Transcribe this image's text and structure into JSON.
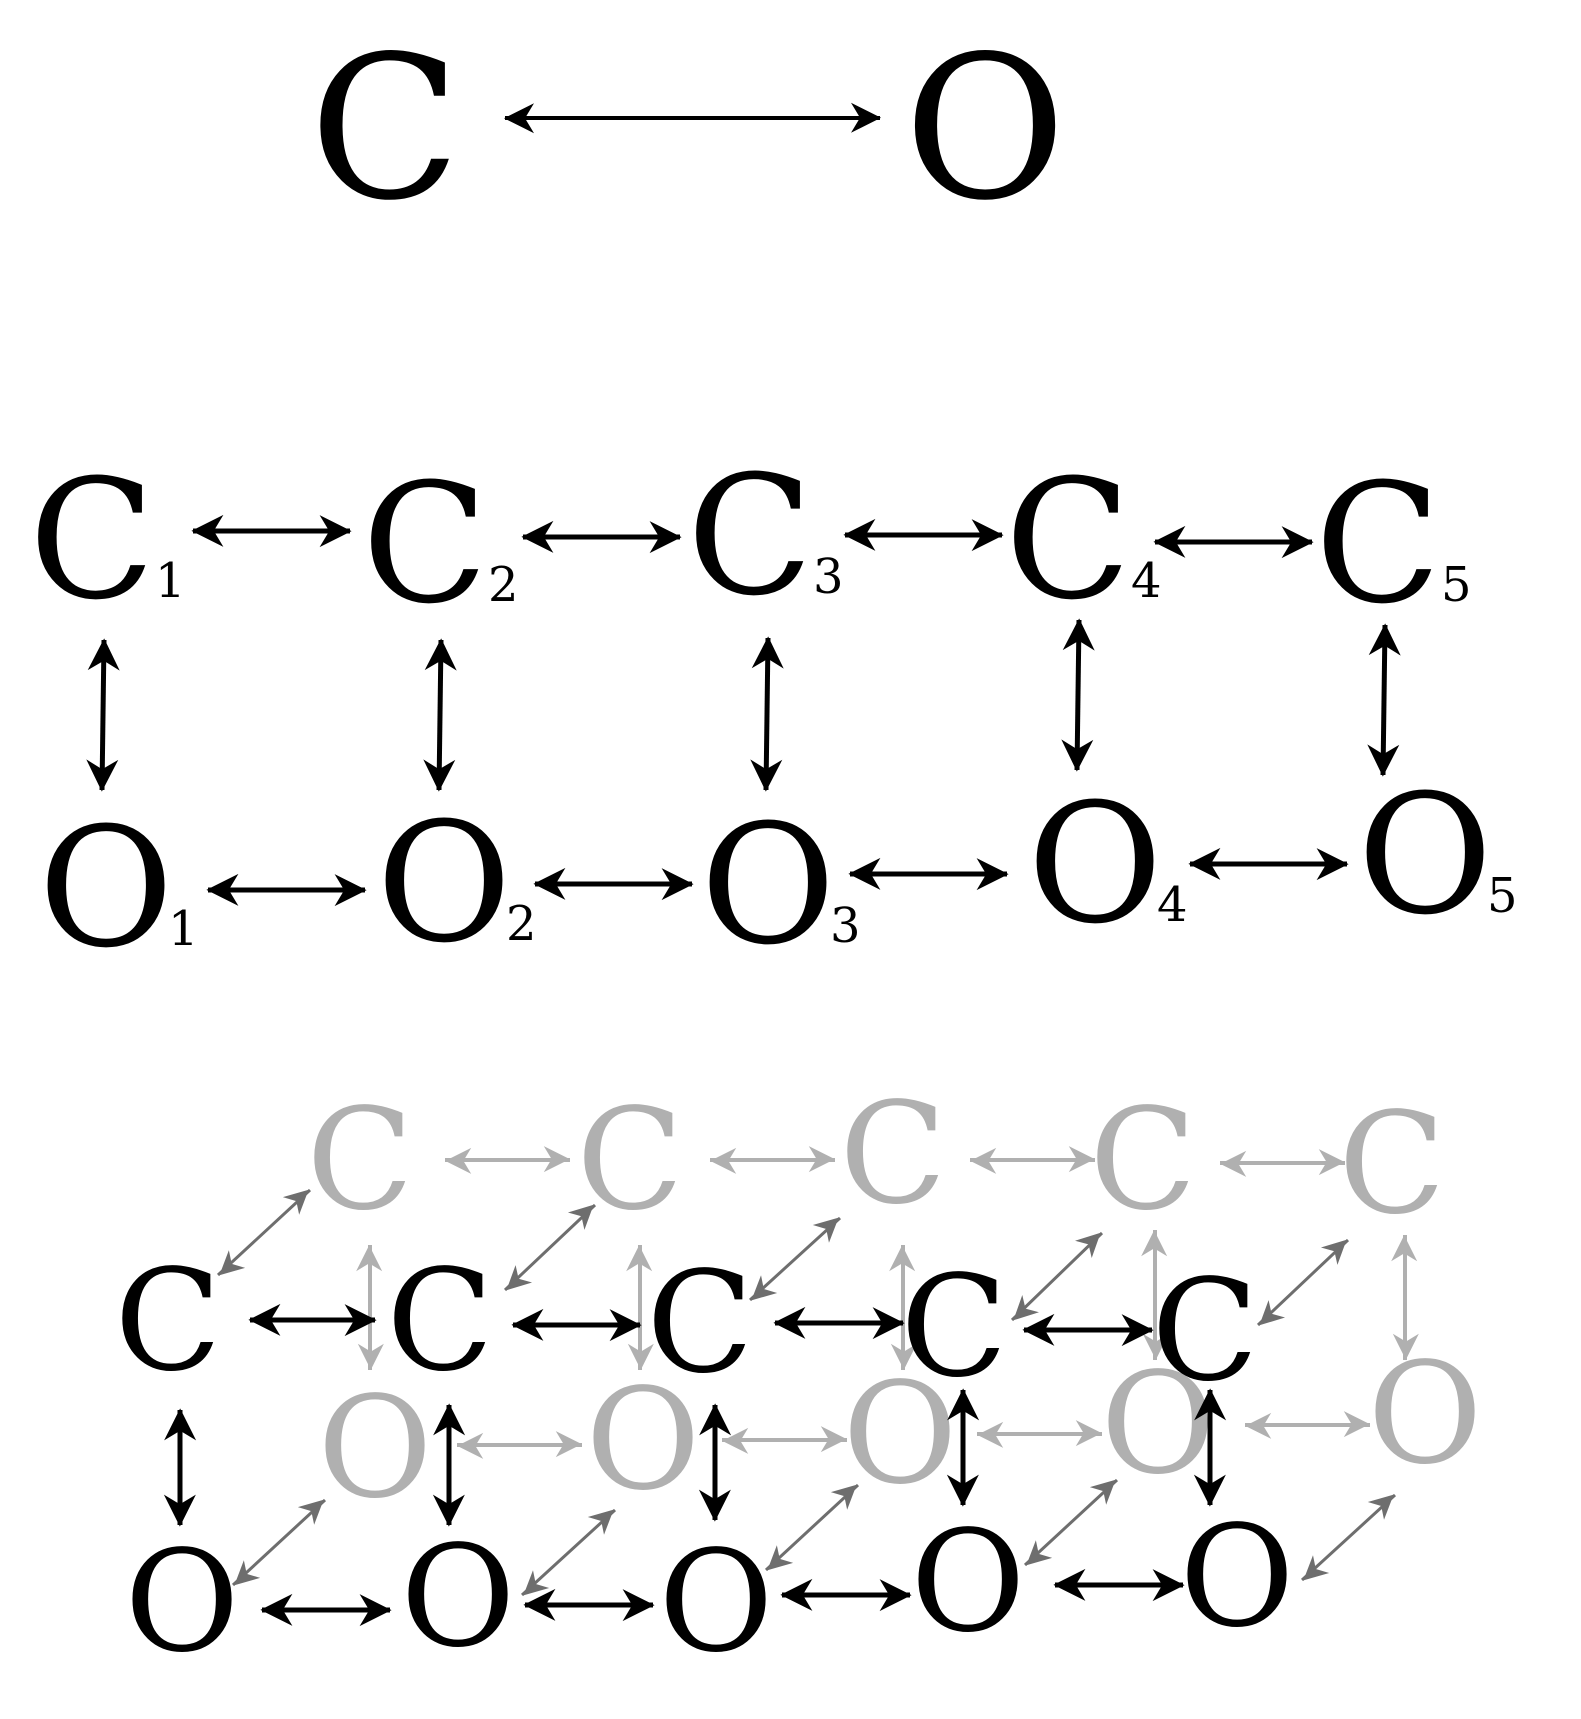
{
  "colors": {
    "front": "#000000",
    "back": "#b0b0b0",
    "depth_link": "#6e6e6e"
  },
  "top": {
    "left_label": "C",
    "right_label": "O"
  },
  "grid": {
    "top_row": [
      {
        "label": "C",
        "sub": "1"
      },
      {
        "label": "C",
        "sub": "2"
      },
      {
        "label": "C",
        "sub": "3"
      },
      {
        "label": "C",
        "sub": "4"
      },
      {
        "label": "C",
        "sub": "5"
      }
    ],
    "bottom_row": [
      {
        "label": "O",
        "sub": "1"
      },
      {
        "label": "O",
        "sub": "2"
      },
      {
        "label": "O",
        "sub": "3"
      },
      {
        "label": "O",
        "sub": "4"
      },
      {
        "label": "O",
        "sub": "5"
      }
    ]
  },
  "layered": {
    "back_top": [
      "C",
      "C",
      "C",
      "C",
      "C"
    ],
    "back_bottom": [
      "O",
      "O",
      "O",
      "O",
      "O"
    ],
    "front_top": [
      "C",
      "C",
      "C",
      "C",
      "C"
    ],
    "front_bottom": [
      "O",
      "O",
      "O",
      "O",
      "O"
    ]
  }
}
